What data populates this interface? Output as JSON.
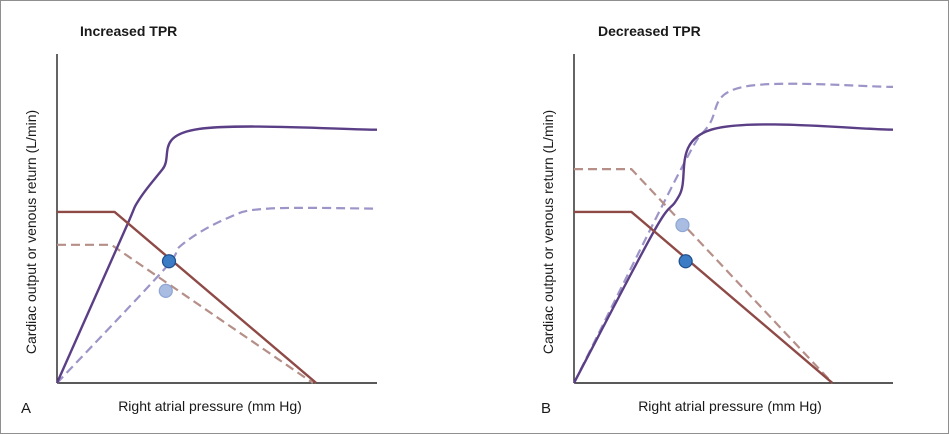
{
  "chart_data": [
    {
      "type": "line",
      "panel_label": "A",
      "title": "Increased TPR",
      "xlabel": "Right atrial pressure (mm Hg)",
      "ylabel": "Cardiac output or venous return (L/min)",
      "xlim": [
        0,
        10
      ],
      "ylim": [
        0,
        10
      ],
      "colors": {
        "cardiac_output": "#5b3f86",
        "venous_return": "#8e4a46",
        "shifted_cardiac": "#9d94c8",
        "shifted_venous": "#b58f88",
        "point": "#3b7cc4",
        "shifted_point": "#a9bde2"
      },
      "series": [
        {
          "role": "cardiac-output",
          "style": "solid",
          "x": [
            0,
            2.1,
            2.55,
            3.3,
            4.3,
            10
          ],
          "y": [
            0,
            4.6,
            5.55,
            6.5,
            7.7,
            7.7
          ]
        },
        {
          "role": "venous-return",
          "style": "solid",
          "x": [
            0,
            1.8,
            8.1
          ],
          "y": [
            5.2,
            5.2,
            0
          ]
        },
        {
          "role": "shifted-cardiac-output",
          "style": "dashed",
          "x": [
            0,
            3.3,
            3.9,
            5.3,
            6.6,
            10
          ],
          "y": [
            0,
            3.4,
            4.2,
            5.0,
            5.3,
            5.3
          ]
        },
        {
          "role": "shifted-venous-return",
          "style": "dashed",
          "x": [
            0,
            1.7,
            8.0
          ],
          "y": [
            4.2,
            4.2,
            0
          ]
        }
      ],
      "points": [
        {
          "role": "equilibrium",
          "x": 3.5,
          "y": 3.7
        },
        {
          "role": "shifted-equilibrium",
          "x": 3.4,
          "y": 2.8
        }
      ]
    },
    {
      "type": "line",
      "panel_label": "B",
      "title": "Decreased TPR",
      "xlabel": "Right atrial pressure (mm Hg)",
      "ylabel": "Cardiac output or venous return (L/min)",
      "xlim": [
        0,
        10
      ],
      "ylim": [
        0,
        10
      ],
      "colors": {
        "cardiac_output": "#5b3f86",
        "venous_return": "#8e4a46",
        "shifted_cardiac": "#9d94c8",
        "shifted_venous": "#b58f88",
        "point": "#3b7cc4",
        "shifted_point": "#a9bde2"
      },
      "series": [
        {
          "role": "cardiac-output",
          "style": "solid",
          "x": [
            0,
            2.5,
            3.3,
            4.3,
            10
          ],
          "y": [
            0,
            4.6,
            5.7,
            7.7,
            7.7
          ]
        },
        {
          "role": "venous-return",
          "style": "solid",
          "x": [
            0,
            1.8,
            8.1
          ],
          "y": [
            5.2,
            5.2,
            0
          ]
        },
        {
          "role": "shifted-cardiac-output",
          "style": "dashed",
          "x": [
            0,
            3.3,
            4.2,
            5.3,
            10
          ],
          "y": [
            0,
            6.4,
            7.8,
            9.0,
            9.0
          ]
        },
        {
          "role": "shifted-venous-return",
          "style": "dashed",
          "x": [
            0,
            1.8,
            8.1
          ],
          "y": [
            6.5,
            6.5,
            0
          ]
        }
      ],
      "points": [
        {
          "role": "equilibrium",
          "x": 3.5,
          "y": 3.7
        },
        {
          "role": "shifted-equilibrium",
          "x": 3.4,
          "y": 4.8
        }
      ]
    }
  ]
}
